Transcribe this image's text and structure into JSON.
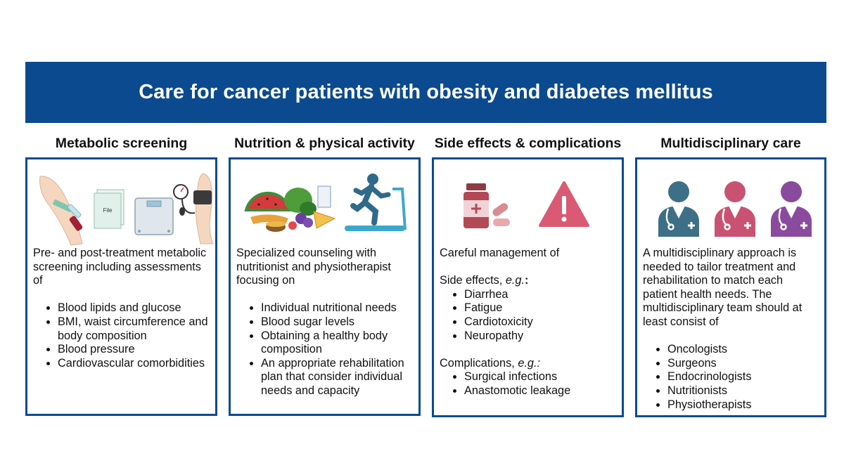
{
  "title": "Care for cancer patients with obesity and diabetes mellitus",
  "colors": {
    "banner": "#0b4a8f",
    "panel_border": "#0b4a8f",
    "warning": "#d95a72",
    "pill": "#b24a56",
    "doctor_teal": "#3d6f87",
    "doctor_pink": "#c95272",
    "doctor_purple": "#8a4b9e"
  },
  "columns": [
    {
      "heading": "Metabolic screening",
      "icons": [
        "arm-blood-draw-icon",
        "file-icon",
        "scale-icon",
        "blood-pressure-cuff-icon"
      ],
      "file_label": "File",
      "intro": "Pre- and post-treatment metabolic screening including assessments of",
      "items": [
        "Blood lipids and glucose",
        "BMI, waist circumference and body composition",
        "Blood pressure",
        "Cardiovascular comorbidities"
      ]
    },
    {
      "heading": "Nutrition & physical activity",
      "icons": [
        "food-icon",
        "treadmill-runner-icon"
      ],
      "intro": "Specialized counseling with nutritionist and physiotherapist focusing on",
      "items": [
        "Individual nutritional needs",
        "Blood sugar levels",
        "Obtaining a healthy body composition",
        "An appropriate rehabilitation plan that consider individual needs and capacity"
      ]
    },
    {
      "heading": "Side effects & complications",
      "icons": [
        "medication-bottle-icon",
        "warning-icon"
      ],
      "intro": "Careful management of",
      "side_effects_label": "Side effects, ",
      "side_effects_eg": "e.g.",
      "side_effects_colon": ":",
      "side_effects": [
        "Diarrhea",
        "Fatigue",
        "Cardiotoxicity",
        "Neuropathy"
      ],
      "complications_label": "Complications, ",
      "complications_eg": "e.g.:",
      "complications": [
        "Surgical infections",
        "Anastomotic leakage"
      ]
    },
    {
      "heading": "Multidisciplinary care",
      "icons": [
        "doctor-icon",
        "doctor-icon",
        "doctor-icon"
      ],
      "intro": "A multidisciplinary approach is needed to tailor treatment and rehabilitation to match each patient health needs. The multidisciplinary team should at least consist of",
      "items": [
        "Oncologists",
        "Surgeons",
        "Endocrinologists",
        "Nutritionists",
        "Physiotherapists"
      ]
    }
  ]
}
